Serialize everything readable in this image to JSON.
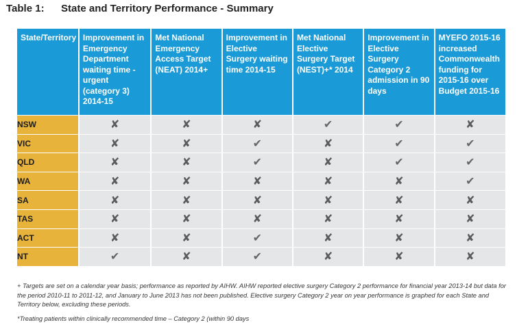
{
  "title": {
    "number": "Table 1:",
    "text": "State and Territory Performance - Summary"
  },
  "columns": [
    "State/Territory",
    "Improvement in Emergency Department waiting time - urgent (category 3) 2014-15",
    "Met National Emergency Access Target (NEAT) 2014+",
    "Improvement in Elective Surgery waiting time 2014-15",
    "Met National Elective Surgery Target (NEST)+* 2014",
    "Improvement in Elective Surgery Category 2 admission in 90 days",
    "MYEFO 2015-16 increased Commonwealth funding for 2015-16 over Budget 2015-16"
  ],
  "symbols": {
    "yes": "✔",
    "no": "✘"
  },
  "rows": [
    {
      "state": "NSW",
      "marks": [
        "no",
        "no",
        "no",
        "yes",
        "yes",
        "no"
      ]
    },
    {
      "state": "VIC",
      "marks": [
        "no",
        "no",
        "yes",
        "no",
        "yes",
        "yes"
      ]
    },
    {
      "state": "QLD",
      "marks": [
        "no",
        "no",
        "yes",
        "no",
        "yes",
        "yes"
      ]
    },
    {
      "state": "WA",
      "marks": [
        "no",
        "no",
        "no",
        "no",
        "no",
        "yes"
      ]
    },
    {
      "state": "SA",
      "marks": [
        "no",
        "no",
        "no",
        "no",
        "no",
        "no"
      ]
    },
    {
      "state": "TAS",
      "marks": [
        "no",
        "no",
        "no",
        "no",
        "no",
        "no"
      ]
    },
    {
      "state": "ACT",
      "marks": [
        "no",
        "no",
        "yes",
        "no",
        "no",
        "no"
      ]
    },
    {
      "state": "NT",
      "marks": [
        "yes",
        "no",
        "yes",
        "no",
        "no",
        "no"
      ]
    }
  ],
  "colors": {
    "header_bg": "#1a9ad6",
    "state_bg": "#e8b33a",
    "cell_bg": "#e5e6e8"
  },
  "notes": {
    "plus": "+ Targets are set on a calendar year basis; performance as reported by AIHW. AIHW reported elective surgery Category 2 performance for financial year 2013-14 but data for the period 2010-11 to 2011-12, and January to June 2013 has not been published. Elective surgery Category 2 year on year performance is graphed for each State and Territory below, excluding these periods.",
    "star": "*Treating patients within clinically recommended time – Category 2 (within 90 days"
  }
}
